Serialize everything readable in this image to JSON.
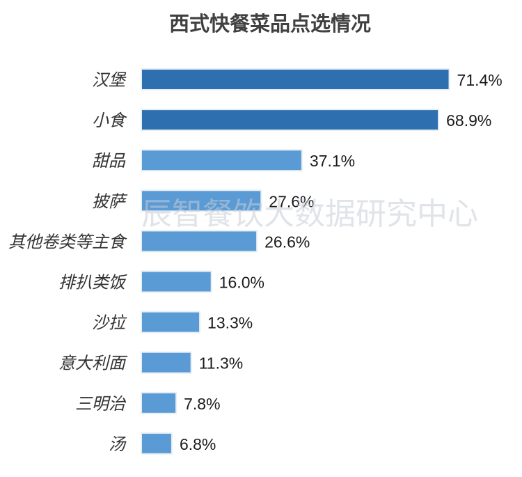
{
  "chart_data": {
    "type": "bar",
    "orientation": "horizontal",
    "title": "西式快餐菜品点选情况",
    "categories": [
      "汉堡",
      "小食",
      "甜品",
      "披萨",
      "其他卷类等主食",
      "排扒类饭",
      "沙拉",
      "意大利面",
      "三明治",
      "汤"
    ],
    "values": [
      71.4,
      68.9,
      37.1,
      27.6,
      26.6,
      16.0,
      13.3,
      11.3,
      7.8,
      6.8
    ],
    "value_labels": [
      "71.4%",
      "68.9%",
      "37.1%",
      "27.6%",
      "26.6%",
      "16.0%",
      "13.3%",
      "11.3%",
      "7.8%",
      "6.8%"
    ],
    "xlim": [
      0,
      100
    ],
    "grid": false,
    "legend": "none",
    "colors": {
      "highlight": "#2e6fb0",
      "normal": "#5b9bd5"
    },
    "highlight_count": 2
  },
  "watermark": "辰智餐饮大数据研究中心"
}
